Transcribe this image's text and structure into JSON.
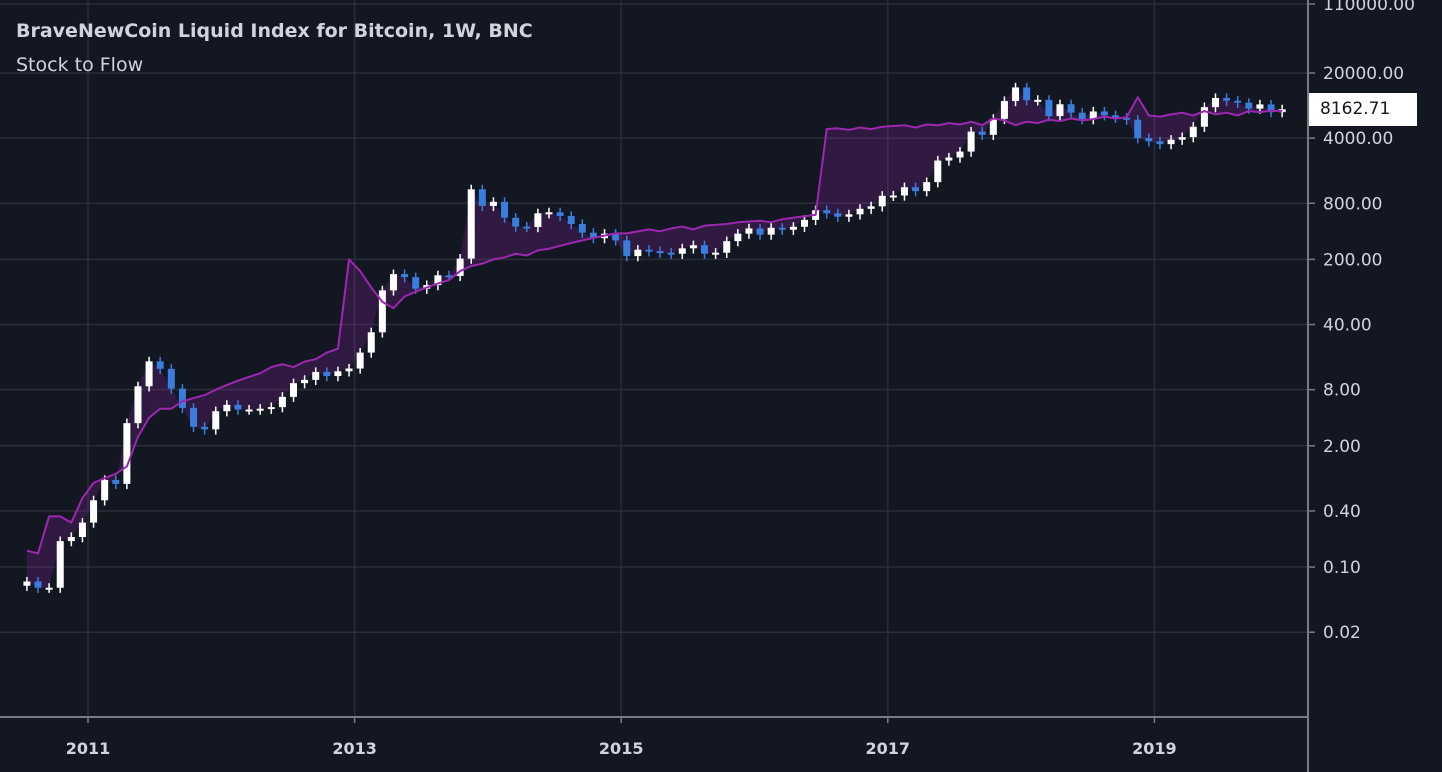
{
  "chart_data": {
    "type": "candlestick+line",
    "title": "BraveNewCoin Liquid Index for Bitcoin, 1W, BNC",
    "indicator_name": "Stock to Flow",
    "y_scale": "log",
    "ylim": [
      0.005,
      110000
    ],
    "y_ticks": [
      "110000.00",
      "20000.00",
      "4000.00",
      "800.00",
      "200.00",
      "40.00",
      "8.00",
      "2.00",
      "0.40",
      "0.10",
      "0.02"
    ],
    "x_ticks": [
      "2011",
      "2013",
      "2015",
      "2017",
      "2019"
    ],
    "xlim": [
      "2010-06",
      "2020-09"
    ],
    "grid": true,
    "last_price": "8162.71",
    "colors": {
      "background": "#131722",
      "up": "#ffffff",
      "down": "#3b7ddd",
      "stock_to_flow": "#9c27b0",
      "fill": "rgba(156,39,176,0.22)",
      "grid": "#2a2e39",
      "axis": "#787b86",
      "text": "#d1d4dc"
    },
    "x": [
      "2010-07",
      "2010-08",
      "2010-09",
      "2010-10",
      "2010-11",
      "2010-12",
      "2011-01",
      "2011-02",
      "2011-03",
      "2011-04",
      "2011-05",
      "2011-06",
      "2011-07",
      "2011-08",
      "2011-09",
      "2011-10",
      "2011-11",
      "2011-12",
      "2012-01",
      "2012-02",
      "2012-03",
      "2012-04",
      "2012-05",
      "2012-06",
      "2012-07",
      "2012-08",
      "2012-09",
      "2012-10",
      "2012-11",
      "2012-12",
      "2013-01",
      "2013-02",
      "2013-03",
      "2013-04",
      "2013-05",
      "2013-06",
      "2013-07",
      "2013-08",
      "2013-09",
      "2013-10",
      "2013-11",
      "2013-12",
      "2014-01",
      "2014-02",
      "2014-03",
      "2014-04",
      "2014-05",
      "2014-06",
      "2014-07",
      "2014-08",
      "2014-09",
      "2014-10",
      "2014-11",
      "2014-12",
      "2015-01",
      "2015-02",
      "2015-03",
      "2015-04",
      "2015-05",
      "2015-06",
      "2015-07",
      "2015-08",
      "2015-09",
      "2015-10",
      "2015-11",
      "2015-12",
      "2016-01",
      "2016-02",
      "2016-03",
      "2016-04",
      "2016-05",
      "2016-06",
      "2016-07",
      "2016-08",
      "2016-09",
      "2016-10",
      "2016-11",
      "2016-12",
      "2017-01",
      "2017-02",
      "2017-03",
      "2017-04",
      "2017-05",
      "2017-06",
      "2017-07",
      "2017-08",
      "2017-09",
      "2017-10",
      "2017-11",
      "2017-12",
      "2018-01",
      "2018-02",
      "2018-03",
      "2018-04",
      "2018-05",
      "2018-06",
      "2018-07",
      "2018-08",
      "2018-09",
      "2018-10",
      "2018-11",
      "2018-12",
      "2019-01",
      "2019-02",
      "2019-03",
      "2019-04",
      "2019-05",
      "2019-06",
      "2019-07",
      "2019-08",
      "2019-09",
      "2019-10",
      "2019-11",
      "2019-12"
    ],
    "price_close": [
      0.07,
      0.06,
      0.06,
      0.19,
      0.21,
      0.3,
      0.52,
      0.86,
      0.78,
      3.5,
      8.7,
      16.1,
      13.4,
      8.2,
      5.1,
      3.2,
      3.0,
      4.7,
      5.5,
      4.9,
      4.9,
      5.0,
      5.2,
      6.7,
      9.4,
      10.2,
      12.4,
      11.2,
      12.6,
      13.5,
      20,
      33,
      93,
      139,
      129,
      97,
      106,
      135,
      133,
      204,
      1130,
      750,
      830,
      560,
      450,
      445,
      625,
      640,
      585,
      480,
      387,
      338,
      378,
      320,
      217,
      254,
      245,
      236,
      230,
      263,
      284,
      230,
      236,
      314,
      378,
      430,
      369,
      437,
      416,
      448,
      531,
      674,
      624,
      574,
      609,
      698,
      742,
      963,
      970,
      1190,
      1080,
      1350,
      2300,
      2480,
      2870,
      4700,
      4340,
      6450,
      10000,
      14000,
      10200,
      10300,
      6900,
      9240,
      7500,
      6400,
      7730,
      7030,
      6630,
      6300,
      4000,
      3700,
      3450,
      3850,
      4100,
      5300,
      8600,
      10800,
      10100,
      9600,
      8300,
      9200,
      7600,
      8162.71
    ],
    "stock_to_flow": [
      0.15,
      0.14,
      0.35,
      0.35,
      0.3,
      0.55,
      0.8,
      0.9,
      1.0,
      1.2,
      2.5,
      4,
      5,
      5,
      6,
      6.5,
      7,
      8,
      9,
      10,
      11,
      12,
      14,
      15,
      14,
      16,
      17,
      20,
      22,
      200,
      150,
      100,
      70,
      60,
      80,
      90,
      100,
      110,
      120,
      150,
      170,
      180,
      200,
      210,
      230,
      220,
      250,
      260,
      280,
      300,
      320,
      340,
      360,
      380,
      380,
      400,
      420,
      400,
      430,
      450,
      420,
      460,
      470,
      480,
      500,
      510,
      520,
      500,
      540,
      560,
      580,
      600,
      5000,
      5100,
      4900,
      5200,
      5000,
      5300,
      5400,
      5500,
      5200,
      5600,
      5500,
      5800,
      5600,
      6000,
      5500,
      6500,
      6200,
      5500,
      6000,
      5800,
      6300,
      6100,
      6500,
      6200,
      6400,
      6800,
      6500,
      6700,
      11000,
      7000,
      6800,
      7200,
      7500,
      7000,
      7800,
      7200,
      7500,
      7000,
      7800,
      7600,
      7900,
      7800
    ]
  }
}
